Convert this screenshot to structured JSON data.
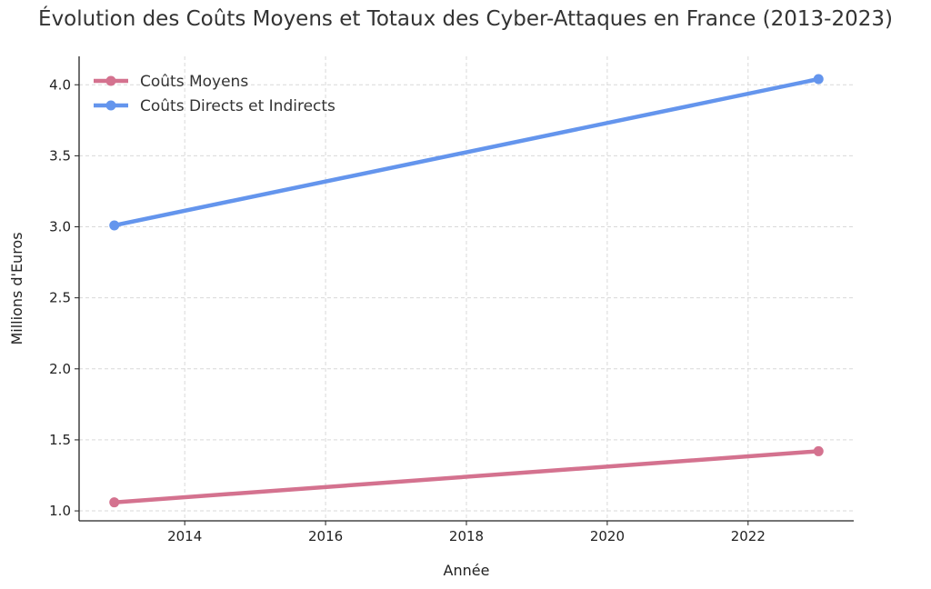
{
  "chart_data": {
    "type": "line",
    "title": "Évolution des Coûts Moyens et Totaux des Cyber-Attaques en France (2013-2023)",
    "xlabel": "Année",
    "ylabel": "Millions d'Euros",
    "x": [
      2013,
      2023
    ],
    "xlim": [
      2012.5,
      2023.5
    ],
    "ylim": [
      0.93,
      4.2
    ],
    "xticks": [
      2014,
      2016,
      2018,
      2020,
      2022
    ],
    "yticks": [
      1.0,
      1.5,
      2.0,
      2.5,
      3.0,
      3.5,
      4.0
    ],
    "grid": true,
    "legend_position": "top-left",
    "series": [
      {
        "name": "Coûts Moyens",
        "values": [
          1.06,
          1.42
        ],
        "color": "#d4728f"
      },
      {
        "name": "Coûts Directs et Indirects",
        "values": [
          3.01,
          4.04
        ],
        "color": "#6495ed"
      }
    ]
  }
}
